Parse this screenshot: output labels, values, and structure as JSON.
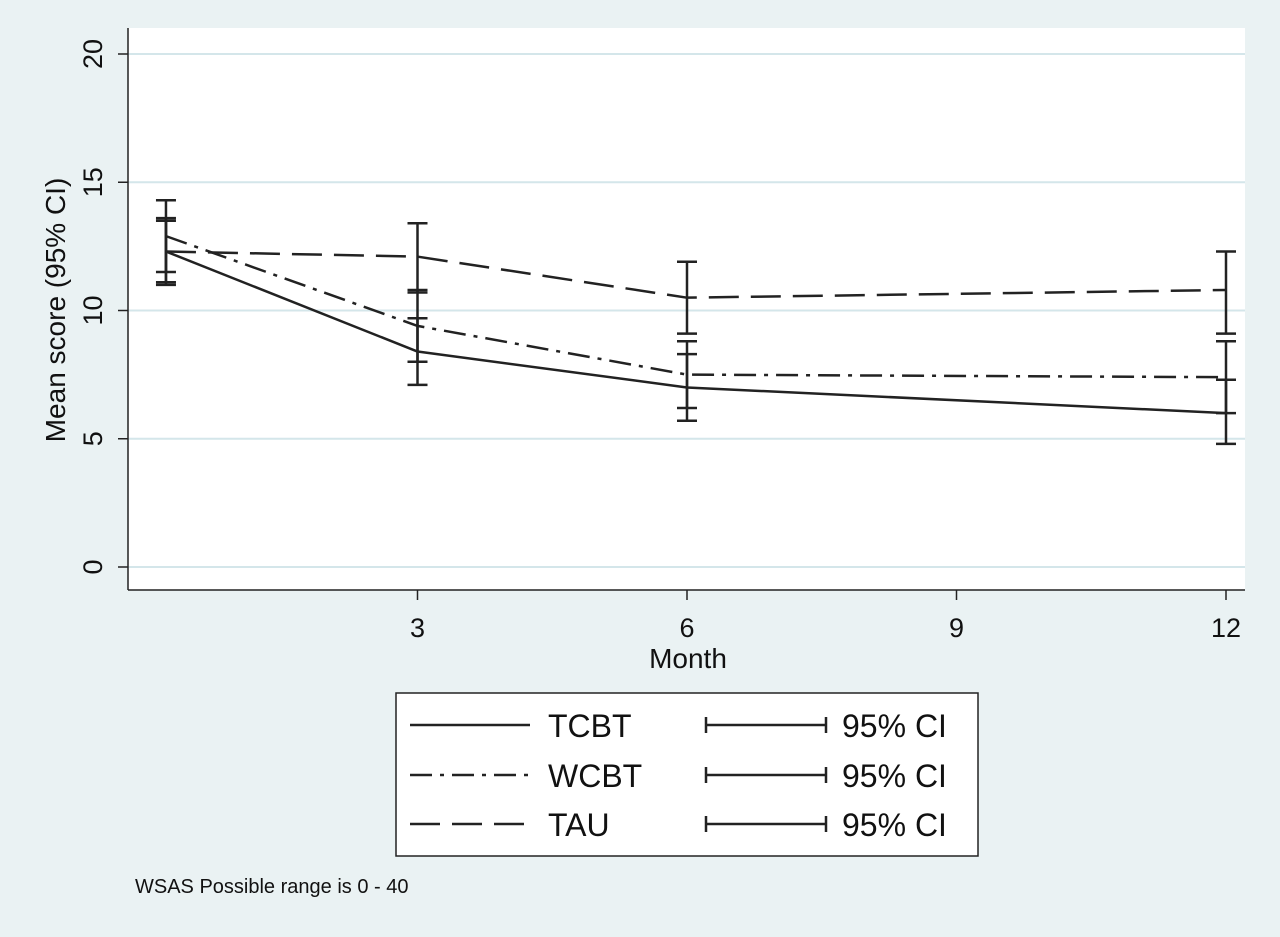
{
  "chart_data": {
    "type": "line",
    "title": "",
    "xlabel": "Month",
    "ylabel": "Mean score (95% CI)",
    "xlim": [
      0,
      12.4
    ],
    "ylim": [
      0,
      20
    ],
    "x_ticks": [
      3,
      6,
      9,
      12
    ],
    "y_ticks": [
      0,
      5,
      10,
      15,
      20
    ],
    "grid": true,
    "legend_placement": "bottom",
    "note": "WSAS Possible range is 0 - 40",
    "series": [
      {
        "name": "TCBT",
        "style": "solid",
        "ci_label": "95% CI",
        "points": [
          {
            "x": 0.2,
            "y": 12.3,
            "lo": 11.0,
            "hi": 13.5
          },
          {
            "x": 3,
            "y": 8.4,
            "lo": 7.1,
            "hi": 9.7
          },
          {
            "x": 6,
            "y": 7.0,
            "lo": 5.7,
            "hi": 8.3
          },
          {
            "x": 12,
            "y": 6.0,
            "lo": 4.8,
            "hi": 7.3
          }
        ]
      },
      {
        "name": "WCBT",
        "style": "dashdot",
        "ci_label": "95% CI",
        "points": [
          {
            "x": 0.2,
            "y": 12.9,
            "lo": 11.5,
            "hi": 14.3
          },
          {
            "x": 3,
            "y": 9.4,
            "lo": 8.0,
            "hi": 10.8
          },
          {
            "x": 6,
            "y": 7.5,
            "lo": 6.2,
            "hi": 8.8
          },
          {
            "x": 12,
            "y": 7.4,
            "lo": 6.0,
            "hi": 8.8
          }
        ]
      },
      {
        "name": "TAU",
        "style": "dashed",
        "ci_label": "95% CI",
        "points": [
          {
            "x": 0.2,
            "y": 12.3,
            "lo": 11.1,
            "hi": 13.6
          },
          {
            "x": 3,
            "y": 12.1,
            "lo": 10.7,
            "hi": 13.4
          },
          {
            "x": 6,
            "y": 10.5,
            "lo": 9.1,
            "hi": 11.9
          },
          {
            "x": 12,
            "y": 10.8,
            "lo": 9.1,
            "hi": 12.3
          }
        ]
      }
    ]
  }
}
